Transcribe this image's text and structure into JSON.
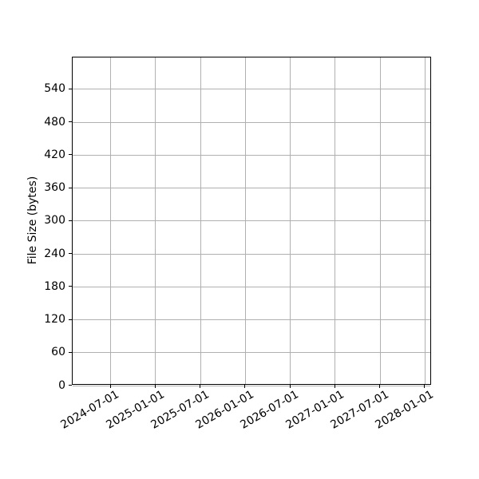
{
  "chart_data": {
    "type": "line",
    "title": "",
    "xlabel": "",
    "ylabel": "File Size (bytes)",
    "series": [],
    "categories": [],
    "x_tick_labels": [
      "2024-07-01",
      "2025-01-01",
      "2025-07-01",
      "2026-01-01",
      "2026-07-01",
      "2027-01-01",
      "2027-07-01",
      "2028-01-01"
    ],
    "x_tick_positions": [
      0.106,
      0.231,
      0.356,
      0.481,
      0.606,
      0.731,
      0.856,
      0.981
    ],
    "x_tick_rotation_deg": 30,
    "y_ticks": [
      0,
      60,
      120,
      180,
      240,
      300,
      360,
      420,
      480,
      540
    ],
    "ylim": [
      0,
      598
    ],
    "grid": true,
    "legend": null,
    "colors": {
      "grid": "#b0b0b0",
      "axis": "#000000",
      "text": "#000000",
      "background": "#ffffff"
    }
  }
}
